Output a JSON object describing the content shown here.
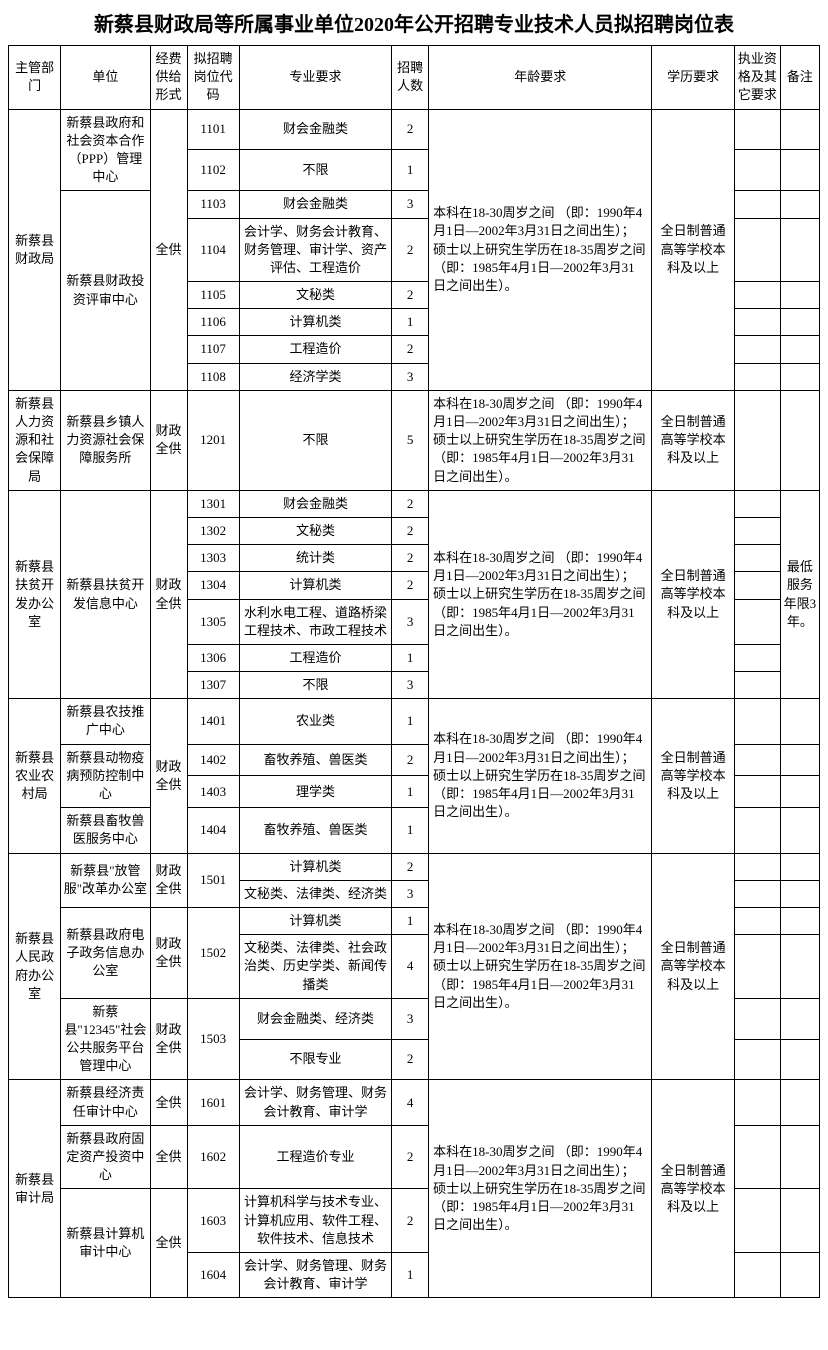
{
  "title": "新蔡县财政局等所属事业单位2020年公开招聘专业技术人员拟招聘岗位表",
  "headers": {
    "dept": "主管部门",
    "unit": "单位",
    "fund": "经费供给形式",
    "code": "拟招聘岗位代码",
    "major": "专业要求",
    "num": "招聘人数",
    "age": "年龄要求",
    "edu": "学历要求",
    "qual": "执业资格及其它要求",
    "note": "备注"
  },
  "age_text": "本科在18-30周岁之间\n（即：1990年4月1日—2002年3月31日之间出生）；硕士以上研究生学历在18-35周岁之间\n（即：1985年4月1日—2002年3月31日之间出生）。",
  "edu_text": "全日制普通高等学校本科及以上",
  "fund_all": "全供",
  "fund_fin": "财政全供",
  "depts": {
    "d1": "新蔡县财政局",
    "d2": "新蔡县人力资源和社会保障局",
    "d3": "新蔡县扶贫开发办公室",
    "d4": "新蔡县农业农村局",
    "d5": "新蔡县人民政府办公室",
    "d6": "新蔡县审计局"
  },
  "units": {
    "u1": "新蔡县政府和社会资本合作（PPP）管理中心",
    "u2": "新蔡县财政投资评审中心",
    "u3": "新蔡县乡镇人力资源社会保障服务所",
    "u4": "新蔡县扶贫开发信息中心",
    "u5": "新蔡县农技推广中心",
    "u6": "新蔡县动物疫病预防控制中心",
    "u7": "新蔡县畜牧兽医服务中心",
    "u8": "新蔡县\"放管服\"改革办公室",
    "u9": "新蔡县政府电子政务信息办公室",
    "u10": "新蔡县\"12345\"社会公共服务平台管理中心",
    "u11": "新蔡县经济责任审计中心",
    "u12": "新蔡县政府固定资产投资中心",
    "u13": "新蔡县计算机审计中心"
  },
  "rows": {
    "r1101": {
      "code": "1101",
      "major": "财会金融类",
      "num": "2"
    },
    "r1102": {
      "code": "1102",
      "major": "不限",
      "num": "1"
    },
    "r1103": {
      "code": "1103",
      "major": "财会金融类",
      "num": "3"
    },
    "r1104": {
      "code": "1104",
      "major": "会计学、财务会计教育、财务管理、审计学、资产评估、工程造价",
      "num": "2"
    },
    "r1105": {
      "code": "1105",
      "major": "文秘类",
      "num": "2"
    },
    "r1106": {
      "code": "1106",
      "major": "计算机类",
      "num": "1"
    },
    "r1107": {
      "code": "1107",
      "major": "工程造价",
      "num": "2"
    },
    "r1108": {
      "code": "1108",
      "major": "经济学类",
      "num": "3"
    },
    "r1201": {
      "code": "1201",
      "major": "不限",
      "num": "5"
    },
    "r1301": {
      "code": "1301",
      "major": "财会金融类",
      "num": "2"
    },
    "r1302": {
      "code": "1302",
      "major": "文秘类",
      "num": "2"
    },
    "r1303": {
      "code": "1303",
      "major": "统计类",
      "num": "2"
    },
    "r1304": {
      "code": "1304",
      "major": "计算机类",
      "num": "2"
    },
    "r1305": {
      "code": "1305",
      "major": "水利水电工程、道路桥梁工程技术、市政工程技术",
      "num": "3"
    },
    "r1306": {
      "code": "1306",
      "major": "工程造价",
      "num": "1"
    },
    "r1307": {
      "code": "1307",
      "major": "不限",
      "num": "3"
    },
    "r1401": {
      "code": "1401",
      "major": "农业类",
      "num": "1"
    },
    "r1402": {
      "code": "1402",
      "major": "畜牧养殖、兽医类",
      "num": "2"
    },
    "r1403": {
      "code": "1403",
      "major": "理学类",
      "num": "1"
    },
    "r1404": {
      "code": "1404",
      "major": "畜牧养殖、兽医类",
      "num": "1"
    },
    "r1501a": {
      "major": "计算机类",
      "num": "2"
    },
    "r1501b": {
      "major": "文秘类、法律类、经济类",
      "num": "3"
    },
    "r1502a": {
      "major": "计算机类",
      "num": "1"
    },
    "r1502b": {
      "major": "文秘类、法律类、社会政治类、历史学类、新闻传播类",
      "num": "4"
    },
    "r1503a": {
      "major": "财会金融类、经济类",
      "num": "3"
    },
    "r1503b": {
      "major": "不限专业",
      "num": "2"
    },
    "c1501": "1501",
    "c1502": "1502",
    "c1503": "1503",
    "r1601": {
      "code": "1601",
      "major": "会计学、财务管理、财务会计教育、审计学",
      "num": "4"
    },
    "r1602": {
      "code": "1602",
      "major": "工程造价专业",
      "num": "2"
    },
    "r1603": {
      "code": "1603",
      "major": "计算机科学与技术专业、计算机应用、软件工程、软件技术、信息技术",
      "num": "2"
    },
    "r1604": {
      "code": "1604",
      "major": "会计学、财务管理、财务会计教育、审计学",
      "num": "1"
    }
  },
  "note3": "最低服务年限3年。"
}
